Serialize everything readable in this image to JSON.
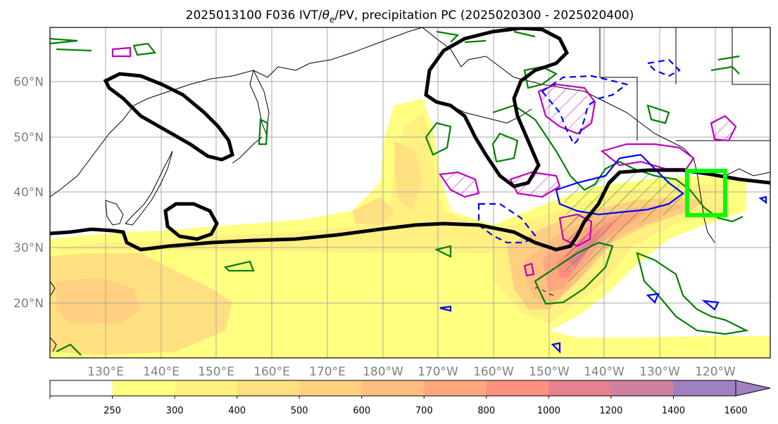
{
  "title": {
    "prefix": "2025013100 F036 IVT/",
    "theta": "θ",
    "theta_sub": "e",
    "suffix": "/PV, precipitation PC (2025020300 - 2025020400)"
  },
  "lat_labels": [
    "60°N",
    "50°N",
    "40°N",
    "30°N",
    "20°N"
  ],
  "lon_labels": [
    "130°E",
    "140°E",
    "150°E",
    "160°E",
    "170°E",
    "180°W",
    "170°W",
    "160°W",
    "150°W",
    "140°W",
    "130°W",
    "120°W"
  ],
  "colorbar": {
    "levels": [
      "250",
      "300",
      "400",
      "500",
      "600",
      "700",
      "800",
      "1000",
      "1200",
      "1400",
      "1600"
    ],
    "colors": [
      "#ffffff",
      "#ffff80",
      "#fff080",
      "#ffe080",
      "#ffd080",
      "#ffbf80",
      "#ffa880",
      "#ff9080",
      "#e88090",
      "#d080a0",
      "#a080c0"
    ],
    "extend": "max"
  },
  "colors": {
    "ivt_fill": [
      "#ffff80",
      "#fff080",
      "#ffe080",
      "#ffd080",
      "#ffbf80",
      "#ffa880",
      "#ff9080",
      "#e88090"
    ],
    "pv_contour": "#000000",
    "theta_contour": "#008000",
    "precip_pos": "#c000c0",
    "precip_neg": "#0000ff",
    "target_box": "#00ff00"
  }
}
